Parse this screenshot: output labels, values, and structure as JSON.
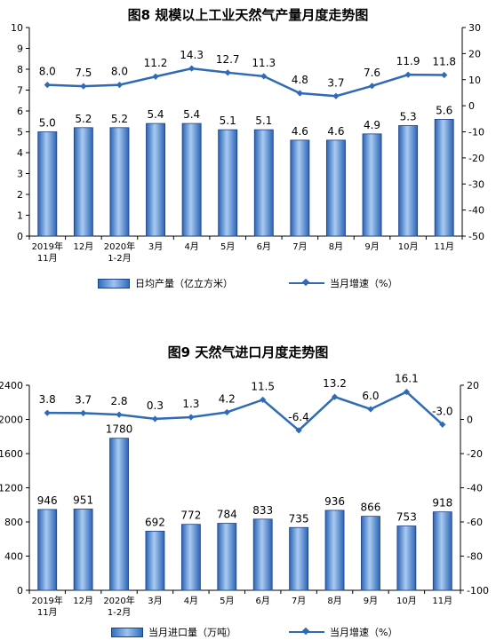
{
  "charts": [
    {
      "title": "图8  规模以上工业天然气产量月度走势图",
      "legend_bar": "日均产量（亿立方米）",
      "legend_line": "当月增速（%）"
    },
    {
      "title": "图9  天然气进口月度走势图",
      "legend_bar": "当月进口量（万吨）",
      "legend_line": "当月增速（%）"
    }
  ],
  "chart_data": [
    {
      "type": "bar",
      "title": "图8  规模以上工业天然气产量月度走势图",
      "categories": [
        "2019年\n11月",
        "12月",
        "2020年\n1-2月",
        "3月",
        "4月",
        "5月",
        "6月",
        "7月",
        "8月",
        "9月",
        "10月",
        "11月"
      ],
      "series": [
        {
          "name": "日均产量（亿立方米）",
          "type": "bar",
          "axis": "left",
          "values": [
            5.0,
            5.2,
            5.2,
            5.4,
            5.4,
            5.1,
            5.1,
            4.6,
            4.6,
            4.9,
            5.3,
            5.6
          ]
        },
        {
          "name": "当月增速（%）",
          "type": "line",
          "axis": "right",
          "values": [
            8.0,
            7.5,
            8.0,
            11.2,
            14.3,
            12.7,
            11.3,
            4.8,
            3.7,
            7.6,
            11.9,
            11.8
          ]
        }
      ],
      "left_axis": {
        "min": 0,
        "max": 10,
        "ticks": [
          0,
          1,
          2,
          3,
          4,
          5,
          6,
          7,
          8,
          9,
          10
        ]
      },
      "right_axis": {
        "min": -50,
        "max": 30,
        "ticks": [
          -50,
          -40,
          -30,
          -20,
          -10,
          0,
          10,
          20,
          30
        ]
      },
      "bar_label_decimals": 1,
      "grid": false,
      "legend_position": "bottom"
    },
    {
      "type": "bar",
      "title": "图9  天然气进口月度走势图",
      "categories": [
        "2019年\n11月",
        "12月",
        "2020年\n1-2月",
        "3月",
        "4月",
        "5月",
        "6月",
        "7月",
        "8月",
        "9月",
        "10月",
        "11月"
      ],
      "series": [
        {
          "name": "当月进口量（万吨）",
          "type": "bar",
          "axis": "left",
          "values": [
            946,
            951,
            1780,
            692,
            772,
            784,
            833,
            735,
            936,
            866,
            753,
            918
          ]
        },
        {
          "name": "当月增速（%）",
          "type": "line",
          "axis": "right",
          "values": [
            3.8,
            3.7,
            2.8,
            0.3,
            1.3,
            4.2,
            11.5,
            -6.4,
            13.2,
            6.0,
            16.1,
            -3.0
          ]
        }
      ],
      "left_axis": {
        "min": 0,
        "max": 2400,
        "ticks": [
          0,
          400,
          800,
          1200,
          1600,
          2000,
          2400
        ]
      },
      "right_axis": {
        "min": -100,
        "max": 20,
        "ticks": [
          -100,
          -80,
          -60,
          -40,
          -20,
          0,
          20
        ]
      },
      "bar_label_decimals": 0,
      "grid": false,
      "legend_position": "bottom"
    }
  ]
}
